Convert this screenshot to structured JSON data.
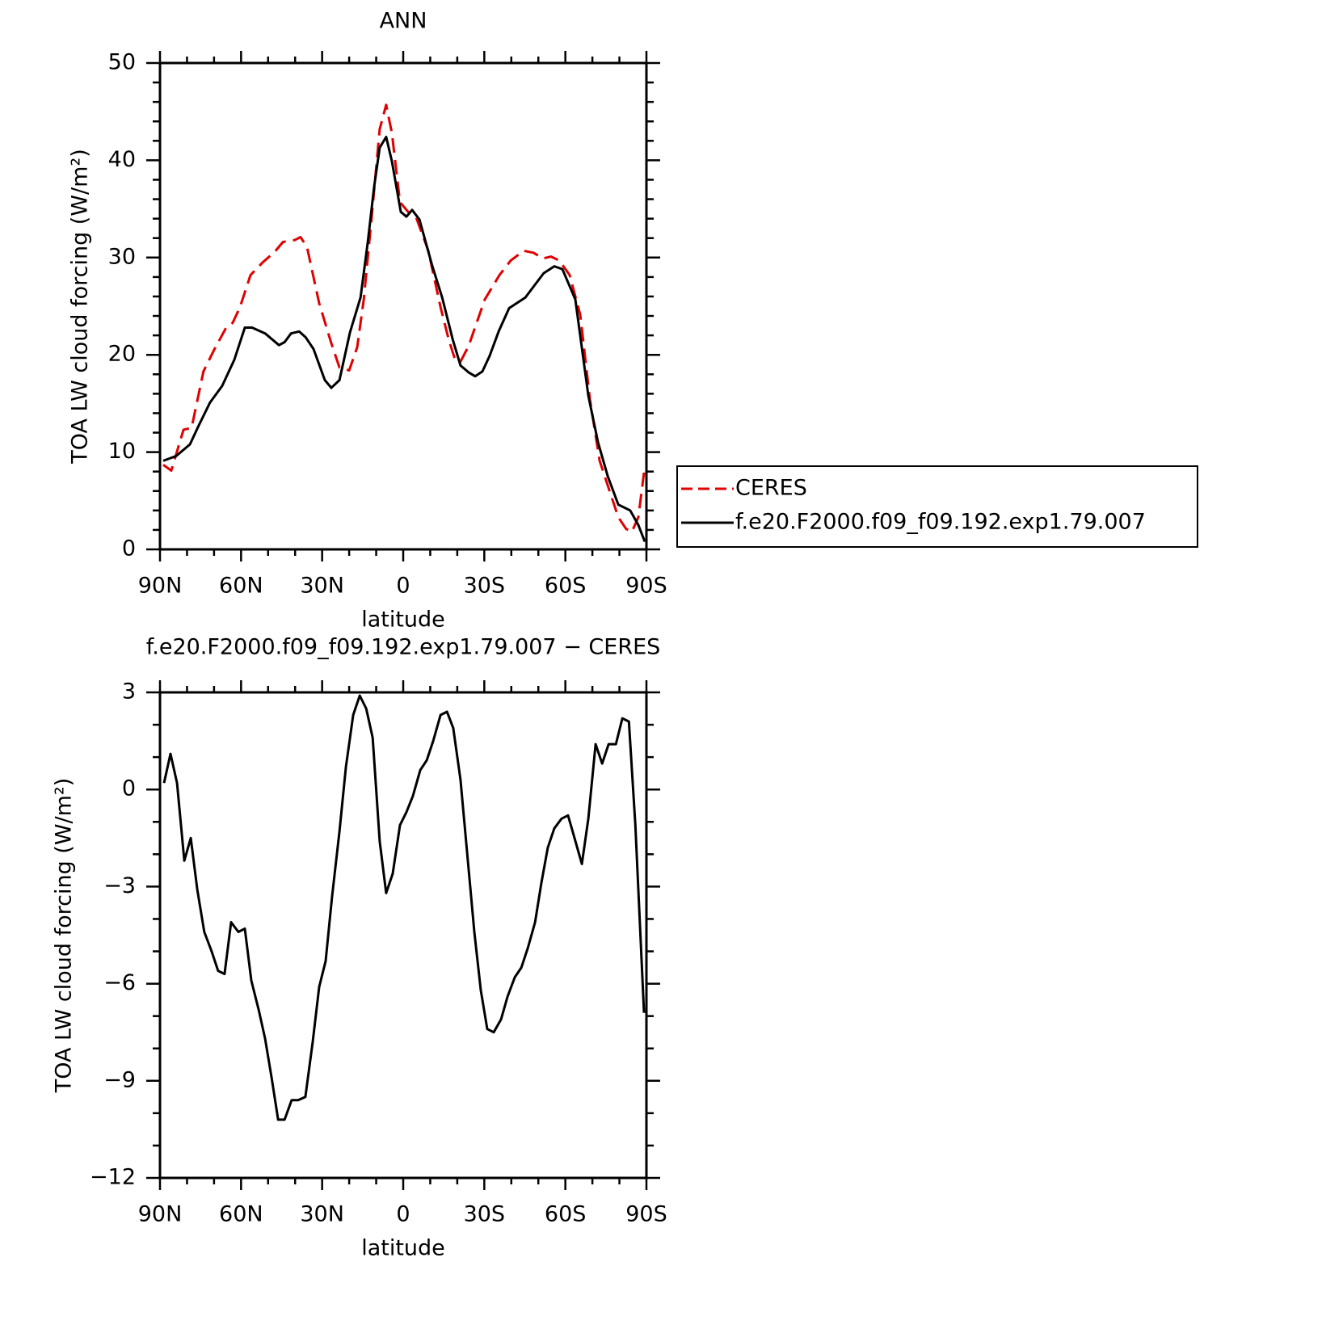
{
  "chart_data": [
    {
      "type": "line",
      "title": "ANN",
      "xlabel": "latitude",
      "ylabel": "TOA LW cloud forcing (W/m²)",
      "xlim": [
        90,
        -90
      ],
      "xticks": [
        {
          "value": 90,
          "label": "90N"
        },
        {
          "value": 60,
          "label": "60N"
        },
        {
          "value": 30,
          "label": "30N"
        },
        0,
        {
          "value": -30,
          "label": "30S"
        },
        {
          "value": -60,
          "label": "60S"
        },
        {
          "value": -90,
          "label": "90S"
        }
      ],
      "xminorticks": [
        80,
        70,
        50,
        40,
        20,
        10,
        -10,
        -20,
        -40,
        -50,
        -70,
        -80
      ],
      "ylim": [
        0,
        50
      ],
      "yticks": [
        0,
        10,
        20,
        30,
        40,
        50
      ],
      "yminorticks": [
        2,
        4,
        6,
        8,
        12,
        14,
        16,
        18,
        22,
        24,
        26,
        28,
        32,
        34,
        36,
        38,
        42,
        44,
        46,
        48
      ],
      "legend": "right",
      "series": [
        {
          "name": "CERES",
          "color": "#e00000",
          "line_style": "dashed",
          "x": [
            88.8,
            85.8,
            81.3,
            78.3,
            73.9,
            70.0,
            65.5,
            63.1,
            60.4,
            56.5,
            52.0,
            47.5,
            44.5,
            40.1,
            38.0,
            35.6,
            31.1,
            26.6,
            23.6,
            20.0,
            17.0,
            14.6,
            11.7,
            8.7,
            6.3,
            4.2,
            1.2,
            -1.8,
            -4.8,
            -9.3,
            -13.8,
            -16.8,
            -19.2,
            -21.2,
            -24.2,
            -30.2,
            -35.6,
            -39.8,
            -44.6,
            -48.2,
            -51.7,
            -54.7,
            -57.7,
            -61.6,
            -65.5,
            -69.1,
            -72.7,
            -76.6,
            -79.6,
            -82.5,
            -84.6,
            -87.0,
            -89.1
          ],
          "values": [
            8.7,
            8.1,
            12.3,
            12.5,
            18.3,
            20.5,
            22.8,
            23.3,
            24.9,
            28.2,
            29.5,
            30.6,
            31.6,
            31.8,
            32.1,
            31.1,
            25.3,
            21.2,
            18.7,
            18.4,
            20.8,
            25.7,
            34.1,
            43.2,
            45.7,
            42.8,
            35.7,
            34.7,
            34.1,
            30.7,
            24.9,
            21.6,
            19.5,
            19.3,
            20.9,
            25.7,
            28.2,
            29.7,
            30.7,
            30.5,
            29.9,
            30.1,
            29.7,
            28.2,
            24.1,
            15.4,
            9.1,
            5.8,
            3.3,
            2.1,
            1.8,
            3.3,
            7.9
          ]
        },
        {
          "name": "f.e20.F2000.f09_f09.192.exp1.79.007",
          "color": "#000000",
          "line_style": "solid",
          "x": [
            88.8,
            84.0,
            78.9,
            75.9,
            71.5,
            67.0,
            62.5,
            58.6,
            55.9,
            51.1,
            46.0,
            43.9,
            41.5,
            38.5,
            36.1,
            33.2,
            29.0,
            26.6,
            23.6,
            19.7,
            15.8,
            13.1,
            10.8,
            8.7,
            6.3,
            4.2,
            0.9,
            -1.2,
            -3.3,
            -6.0,
            -10.8,
            -14.4,
            -18.3,
            -21.2,
            -24.2,
            -26.6,
            -29.3,
            -32.0,
            -35.3,
            -39.2,
            -45.2,
            -48.2,
            -52.0,
            -55.9,
            -58.9,
            -63.7,
            -68.5,
            -72.1,
            -75.7,
            -79.6,
            -84.0,
            -87.0,
            -89.4
          ],
          "values": [
            9.1,
            9.6,
            10.8,
            12.6,
            15.1,
            16.8,
            19.5,
            22.8,
            22.8,
            22.2,
            21.0,
            21.3,
            22.2,
            22.4,
            21.8,
            20.6,
            17.4,
            16.6,
            17.4,
            22.3,
            25.9,
            31.6,
            37.2,
            41.3,
            42.4,
            39.9,
            34.7,
            34.2,
            34.9,
            33.9,
            29.1,
            25.9,
            21.6,
            18.9,
            18.2,
            17.8,
            18.3,
            19.9,
            22.4,
            24.8,
            25.9,
            27.0,
            28.4,
            29.1,
            28.8,
            25.7,
            15.8,
            11.0,
            7.5,
            4.6,
            4.0,
            2.5,
            0.8
          ]
        }
      ]
    },
    {
      "type": "line",
      "title": "f.e20.F2000.f09_f09.192.exp1.79.007 − CERES",
      "xlabel": "latitude",
      "ylabel": "TOA LW cloud forcing (W/m²)",
      "xlim": [
        90,
        -90
      ],
      "xticks": [
        {
          "value": 90,
          "label": "90N"
        },
        {
          "value": 60,
          "label": "60N"
        },
        {
          "value": 30,
          "label": "30N"
        },
        0,
        {
          "value": -30,
          "label": "30S"
        },
        {
          "value": -60,
          "label": "60S"
        },
        {
          "value": -90,
          "label": "90S"
        }
      ],
      "xminorticks": [
        80,
        70,
        50,
        40,
        20,
        10,
        -10,
        -20,
        -40,
        -50,
        -70,
        -80
      ],
      "ylim": [
        -12,
        3
      ],
      "yticks": [
        {
          "value": -12,
          "label": "−12"
        },
        {
          "value": -9,
          "label": "−9"
        },
        {
          "value": -6,
          "label": "−6"
        },
        {
          "value": -3,
          "label": "−3"
        },
        0,
        3
      ],
      "yminorticks": [
        -11,
        -10,
        -8,
        -7,
        -5,
        -4,
        -2,
        -1,
        1,
        2
      ],
      "series": [
        {
          "color": "#000000",
          "line_style": "solid",
          "x": [
            88.5,
            86.1,
            83.7,
            81.0,
            78.6,
            76.2,
            73.6,
            70.9,
            68.5,
            66.1,
            63.7,
            61.0,
            58.6,
            56.2,
            53.5,
            51.1,
            48.7,
            46.3,
            43.9,
            41.3,
            38.9,
            36.2,
            33.5,
            31.1,
            28.7,
            26.3,
            23.6,
            21.2,
            18.5,
            16.1,
            13.7,
            11.3,
            8.7,
            6.3,
            3.9,
            1.2,
            -1.2,
            -3.6,
            -6.3,
            -8.7,
            -11.1,
            -13.8,
            -16.2,
            -18.5,
            -21.2,
            -23.6,
            -26.3,
            -28.7,
            -31.1,
            -33.5,
            -36.2,
            -38.6,
            -41.3,
            -43.7,
            -46.1,
            -48.8,
            -51.1,
            -53.5,
            -55.9,
            -58.6,
            -61.0,
            -63.4,
            -66.1,
            -68.5,
            -71.2,
            -73.6,
            -76.0,
            -78.7,
            -81.1,
            -83.5,
            -85.9,
            -89.1
          ],
          "values": [
            0.2,
            1.1,
            0.2,
            -2.2,
            -1.5,
            -3.1,
            -4.4,
            -5.0,
            -5.6,
            -5.7,
            -4.1,
            -4.4,
            -4.3,
            -5.9,
            -6.8,
            -7.7,
            -8.9,
            -10.2,
            -10.2,
            -9.6,
            -9.6,
            -9.5,
            -7.8,
            -6.1,
            -5.3,
            -3.3,
            -1.3,
            0.7,
            2.3,
            2.9,
            2.5,
            1.6,
            -1.6,
            -3.2,
            -2.6,
            -1.1,
            -0.7,
            -0.2,
            0.6,
            0.9,
            1.5,
            2.3,
            2.4,
            1.9,
            0.3,
            -1.9,
            -4.4,
            -6.2,
            -7.4,
            -7.5,
            -7.1,
            -6.4,
            -5.8,
            -5.5,
            -4.9,
            -4.1,
            -2.9,
            -1.8,
            -1.2,
            -0.9,
            -0.8,
            -1.5,
            -2.3,
            -0.9,
            1.4,
            0.8,
            1.4,
            1.4,
            2.2,
            2.1,
            -1.1,
            -6.9
          ]
        }
      ]
    }
  ]
}
